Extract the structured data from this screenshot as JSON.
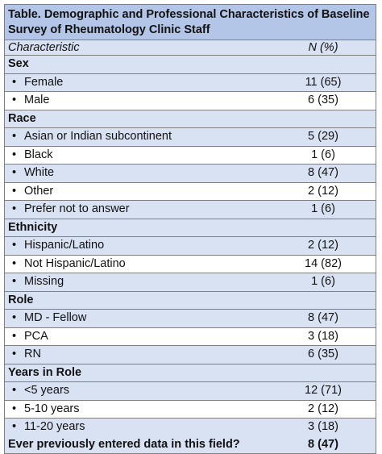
{
  "title": "Table. Demographic and Professional Characteristics of Baseline Survey of Rheumatology Clinic Staff",
  "header": {
    "characteristic": "Characteristic",
    "n_pct": "N (%)"
  },
  "bullet": "•",
  "sections": [
    {
      "name": "Sex",
      "items": [
        {
          "label": "Female",
          "value": "11 (65)"
        },
        {
          "label": "Male",
          "value": "6 (35)"
        }
      ]
    },
    {
      "name": "Race",
      "items": [
        {
          "label": "Asian or Indian subcontinent",
          "value": "5 (29)"
        },
        {
          "label": "Black",
          "value": "1 (6)"
        },
        {
          "label": "White",
          "value": "8 (47)"
        },
        {
          "label": "Other",
          "value": "2 (12)"
        },
        {
          "label": "Prefer not to answer",
          "value": "1 (6)"
        }
      ]
    },
    {
      "name": "Ethnicity",
      "items": [
        {
          "label": "Hispanic/Latino",
          "value": "2 (12)"
        },
        {
          "label": "Not Hispanic/Latino",
          "value": "14 (82)"
        },
        {
          "label": "Missing",
          "value": "1 (6)"
        }
      ]
    },
    {
      "name": "Role",
      "items": [
        {
          "label": "MD - Fellow",
          "value": "8 (47)"
        },
        {
          "label": "PCA",
          "value": "3 (18)"
        },
        {
          "label": "RN",
          "value": "6 (35)"
        }
      ]
    },
    {
      "name": "Years in Role",
      "items": [
        {
          "label": "<5 years",
          "value": "12 (71)"
        },
        {
          "label": "5-10 years",
          "value": "2 (12)"
        },
        {
          "label": "11-20 years",
          "value": "3 (18)"
        }
      ]
    }
  ],
  "final_row": {
    "label": "Ever previously entered data in this field?",
    "value": "8 (47)"
  }
}
